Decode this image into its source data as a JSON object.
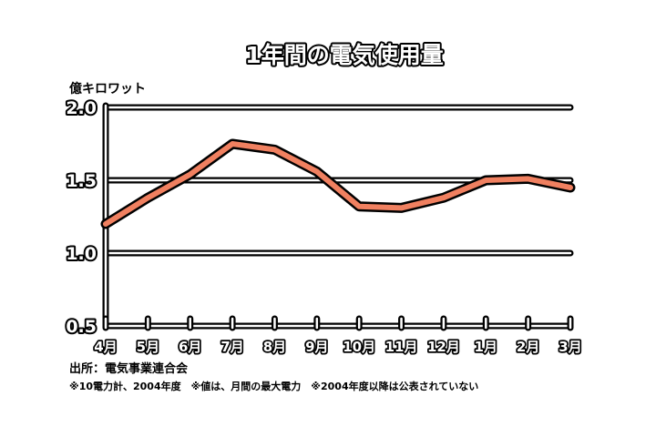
{
  "chart_data": {
    "type": "line",
    "title": "1年間の電気使用量",
    "ylabel": "億キロワット",
    "ylim": [
      0.5,
      2.0
    ],
    "yticks": [
      "0.5",
      "1.0",
      "1.5",
      "2.0"
    ],
    "ytick_values": [
      0.5,
      1.0,
      1.5,
      2.0
    ],
    "grid": true,
    "categories": [
      "4月",
      "5月",
      "6月",
      "7月",
      "8月",
      "9月",
      "10月",
      "11月",
      "12月",
      "1月",
      "2月",
      "3月"
    ],
    "series": [
      {
        "values": [
          1.2,
          1.38,
          1.54,
          1.75,
          1.71,
          1.56,
          1.32,
          1.31,
          1.38,
          1.5,
          1.51,
          1.45
        ]
      }
    ],
    "line_color": "#f08060",
    "outline_color": "#000000"
  },
  "source": "出所：電気事業連合会",
  "footnote": "※10電力計、2004年度　※値は、月間の最大電力　※2004年度以降は公表されていない"
}
